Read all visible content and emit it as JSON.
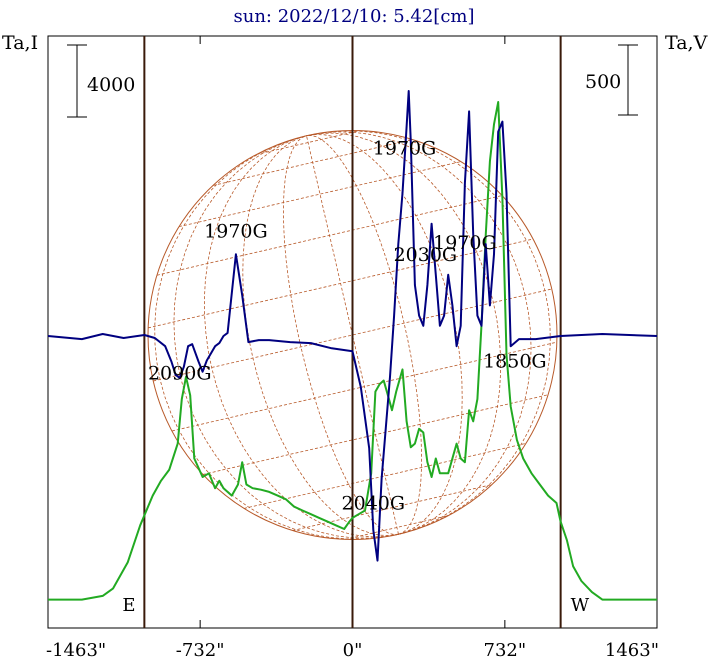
{
  "chart_data": {
    "type": "line",
    "title": "sun: 2022/12/10: 5.42[cm]",
    "left_axis_label": "Ta,I",
    "right_axis_label": "Ta,V",
    "left_scale_bar": "4000",
    "right_scale_bar": "500",
    "x_ticks": [
      "-1463\"",
      "-732\"",
      "0\"",
      "732\"",
      "1463\""
    ],
    "x_tick_values": [
      -1463,
      -732,
      0,
      732,
      1463
    ],
    "xlim": [
      -1463,
      1463
    ],
    "limb_lines": [
      -1000,
      0,
      1000
    ],
    "limb_markers": {
      "east": "E",
      "west": "W"
    },
    "grid": true,
    "colors": {
      "I": "#22aa22",
      "V": "#000080",
      "sun_disk": "#b85a2a",
      "title": "#000080",
      "frame": "#000000"
    },
    "annotations": [
      {
        "text": "1970G",
        "x": -560,
        "y_frac": 0.66
      },
      {
        "text": "2090G",
        "x": -830,
        "y_frac": 0.42
      },
      {
        "text": "1970G",
        "x": 250,
        "y_frac": 0.8
      },
      {
        "text": "2030G",
        "x": 350,
        "y_frac": 0.62
      },
      {
        "text": "1970G",
        "x": 540,
        "y_frac": 0.64
      },
      {
        "text": "1850G",
        "x": 780,
        "y_frac": 0.44
      },
      {
        "text": "2040G",
        "x": 100,
        "y_frac": 0.2
      }
    ],
    "series": [
      {
        "name": "I",
        "x": [
          -1463,
          -1300,
          -1200,
          -1150,
          -1080,
          -1020,
          -960,
          -920,
          -880,
          -840,
          -820,
          -800,
          -780,
          -760,
          -720,
          -690,
          -660,
          -640,
          -620,
          -580,
          -550,
          -530,
          -510,
          -480,
          -440,
          -400,
          -360,
          -320,
          -280,
          -240,
          -200,
          -160,
          -120,
          -80,
          -40,
          -15,
          0,
          30,
          60,
          90,
          110,
          130,
          150,
          170,
          190,
          210,
          240,
          260,
          280,
          300,
          320,
          340,
          360,
          380,
          400,
          420,
          460,
          500,
          520,
          540,
          560,
          580,
          600,
          620,
          640,
          660,
          680,
          700,
          720,
          740,
          760,
          790,
          820,
          860,
          900,
          940,
          980,
          1000,
          1030,
          1060,
          1100,
          1150,
          1200,
          1300,
          1463
        ],
        "y": [
          10,
          10,
          15,
          25,
          60,
          110,
          150,
          170,
          185,
          220,
          280,
          310,
          285,
          200,
          175,
          180,
          160,
          170,
          160,
          150,
          165,
          195,
          165,
          160,
          158,
          155,
          150,
          145,
          135,
          130,
          125,
          120,
          115,
          110,
          105,
          115,
          120,
          125,
          130,
          180,
          290,
          300,
          305,
          285,
          265,
          290,
          320,
          250,
          215,
          220,
          240,
          235,
          195,
          175,
          200,
          180,
          180,
          220,
          200,
          195,
          265,
          250,
          280,
          380,
          500,
          600,
          650,
          680,
          550,
          340,
          270,
          225,
          200,
          180,
          165,
          150,
          140,
          115,
          90,
          55,
          35,
          20,
          10,
          10,
          10
        ]
      },
      {
        "name": "V",
        "x": [
          -1463,
          -1300,
          -1200,
          -1100,
          -1000,
          -950,
          -900,
          -870,
          -850,
          -830,
          -810,
          -790,
          -770,
          -740,
          -720,
          -700,
          -660,
          -640,
          -620,
          -600,
          -560,
          -530,
          -500,
          -450,
          -400,
          -300,
          -200,
          -100,
          0,
          40,
          80,
          100,
          120,
          140,
          160,
          180,
          200,
          220,
          240,
          260,
          270,
          280,
          300,
          320,
          340,
          360,
          380,
          400,
          420,
          440,
          460,
          480,
          500,
          520,
          540,
          560,
          580,
          600,
          620,
          640,
          660,
          680,
          700,
          720,
          740,
          760,
          800,
          880,
          1000,
          1200,
          1463
        ],
        "y": [
          0,
          -30,
          20,
          -20,
          10,
          -20,
          -100,
          -250,
          -380,
          -410,
          -300,
          -100,
          -80,
          -250,
          -350,
          -240,
          -100,
          -70,
          0,
          30,
          800,
          400,
          -60,
          -40,
          -40,
          -60,
          -70,
          -120,
          -150,
          -500,
          -1100,
          -1900,
          -2200,
          -1400,
          -900,
          -400,
          200,
          900,
          1400,
          2050,
          2400,
          1900,
          500,
          200,
          100,
          500,
          1100,
          600,
          100,
          200,
          600,
          300,
          -100,
          100,
          1500,
          2200,
          1000,
          200,
          100,
          900,
          300,
          800,
          2000,
          2100,
          1400,
          -100,
          -30,
          -30,
          0,
          20,
          0
        ]
      }
    ]
  }
}
